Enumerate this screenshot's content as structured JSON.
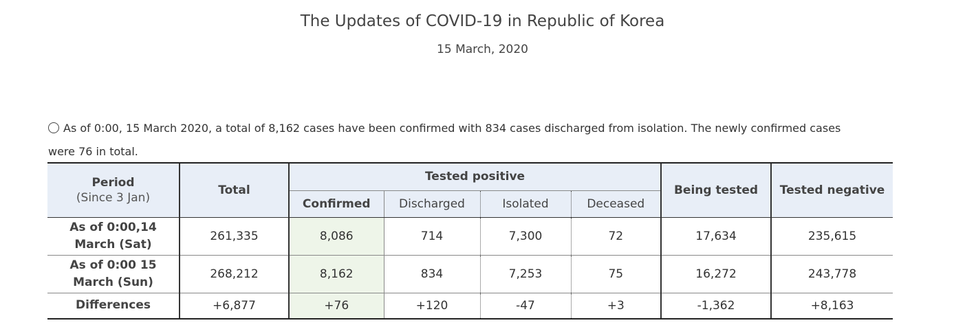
{
  "header": {
    "title": "The Updates of COVID-19 in Republic of Korea",
    "date": "15 March, 2020"
  },
  "summary": {
    "line1": "As of 0:00, 15 March 2020, a total of 8,162 cases have been confirmed with 834 cases discharged from isolation. The newly confirmed cases",
    "line2": "were 76 in total."
  },
  "table": {
    "headers": {
      "period": "Period",
      "period_sub": "(Since 3 Jan)",
      "total": "Total",
      "tested_positive": "Tested positive",
      "confirmed": "Confirmed",
      "discharged": "Discharged",
      "isolated": "Isolated",
      "deceased": "Deceased",
      "being_tested": "Being tested",
      "tested_negative": "Tested negative"
    },
    "rows": [
      {
        "period_line1": "As of 0:00,14",
        "period_line2": "March (Sat)",
        "total": "261,335",
        "confirmed": "8,086",
        "discharged": "714",
        "isolated": "7,300",
        "deceased": "72",
        "being_tested": "17,634",
        "tested_negative": "235,615"
      },
      {
        "period_line1": "As of 0:00 15",
        "period_line2": "March (Sun)",
        "total": "268,212",
        "confirmed": "8,162",
        "discharged": "834",
        "isolated": "7,253",
        "deceased": "75",
        "being_tested": "16,272",
        "tested_negative": "243,778"
      },
      {
        "period_line1": "Differences",
        "total": "+6,877",
        "confirmed": "+76",
        "discharged": "+120",
        "isolated": "-47",
        "deceased": "+3",
        "being_tested": "-1,362",
        "tested_negative": "+8,163"
      }
    ]
  },
  "colors": {
    "header_bg": "#e8eef7",
    "confirmed_bg": "#eef5e9",
    "text": "#333333"
  }
}
